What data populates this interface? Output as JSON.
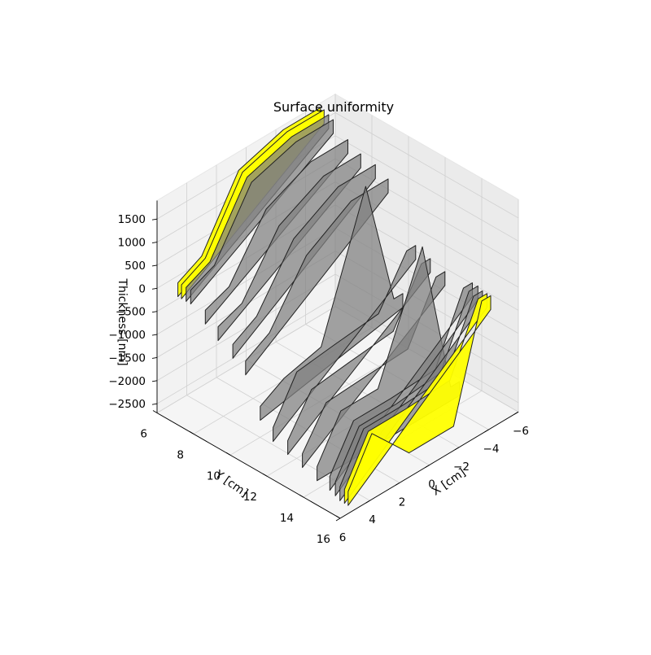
{
  "chart_data": {
    "type": "area",
    "title": "Surface uniformity",
    "xlabel": "X [cm]",
    "ylabel": "Y [cm]",
    "zlabel": "Thickness [nm]",
    "xlim": [
      -6,
      6
    ],
    "ylim": [
      6,
      16
    ],
    "zlim": [
      -2700,
      1900
    ],
    "x_ticks": [
      "−6",
      "−4",
      "−2",
      "0",
      "2",
      "4",
      "6"
    ],
    "x_tick_values": [
      -6,
      -4,
      -2,
      0,
      2,
      4,
      6
    ],
    "y_ticks": [
      "6",
      "8",
      "10",
      "12",
      "14",
      "16"
    ],
    "y_tick_values": [
      6,
      8,
      10,
      12,
      14,
      16
    ],
    "z_ticks": [
      "1500",
      "1000",
      "500",
      "0",
      "−500",
      "−1000",
      "−1500",
      "−2000",
      "−2500"
    ],
    "z_tick_values": [
      1500,
      1000,
      500,
      0,
      -500,
      -1000,
      -1500,
      -2000,
      -2500
    ],
    "grid": true,
    "colors": {
      "highlight": "#ffff00",
      "fill": "#808080",
      "edge": "#222222"
    },
    "x": [
      4.6,
      3.0,
      0.5,
      -2.5,
      -4.4,
      -5.0
    ],
    "series": [
      {
        "y": 6.0,
        "values": [
          -150,
          120,
          1500,
          1800,
          1800,
          1800
        ],
        "highlight": true
      },
      {
        "y": 6.2,
        "values": [
          -150,
          120,
          1500,
          1800,
          1800,
          1800
        ],
        "highlight": true
      },
      {
        "y": 6.45,
        "values": [
          -150,
          100,
          1450,
          1750,
          1750,
          1750
        ],
        "highlight": false
      },
      {
        "y": 6.7,
        "values": [
          -150,
          80,
          1400,
          1700,
          1700,
          1700
        ],
        "highlight": false
      },
      {
        "y": 7.5,
        "values": [
          -400,
          -200,
          1000,
          1450,
          1450,
          1450
        ],
        "highlight": false
      },
      {
        "y": 8.2,
        "values": [
          -600,
          -400,
          800,
          1300,
          1300,
          1300
        ],
        "highlight": false
      },
      {
        "y": 9.0,
        "values": [
          -800,
          -500,
          700,
          1250,
          1250,
          1250
        ],
        "highlight": false
      },
      {
        "y": 9.7,
        "values": [
          -1000,
          -700,
          500,
          1100,
          1100,
          1100
        ],
        "highlight": false
      },
      {
        "y": 10.5,
        "values": [
          -1800,
          -1500,
          -1300,
          1600,
          -1200,
          -1200
        ],
        "highlight": false
      },
      {
        "y": 11.2,
        "values": [
          -2100,
          -1200,
          -1100,
          -1000,
          0,
          0
        ],
        "highlight": false
      },
      {
        "y": 12.0,
        "values": [
          -2200,
          -1400,
          -1300,
          -1200,
          -100,
          -100
        ],
        "highlight": false
      },
      {
        "y": 12.8,
        "values": [
          -2300,
          -1500,
          -1450,
          -1400,
          -200,
          -200
        ],
        "highlight": false
      },
      {
        "y": 13.6,
        "values": [
          -2400,
          -1500,
          -1500,
          1000,
          -2400,
          -2400
        ],
        "highlight": false
      },
      {
        "y": 14.3,
        "values": [
          -2450,
          -1550,
          -1550,
          -1500,
          -100,
          -100
        ],
        "highlight": false
      },
      {
        "y": 14.6,
        "values": [
          -2500,
          -1600,
          -1600,
          -1500,
          -100,
          -100
        ],
        "highlight": false
      },
      {
        "y": 14.85,
        "values": [
          -2550,
          -1600,
          -1600,
          -1550,
          -150,
          -150
        ],
        "highlight": false
      },
      {
        "y": 15.1,
        "values": [
          -2550,
          -1600,
          -1600,
          -1550,
          -150,
          -150
        ],
        "highlight": true
      },
      {
        "y": 15.3,
        "values": [
          -2550,
          -1600,
          -2500,
          -2500,
          -150,
          -150
        ],
        "highlight": true
      }
    ]
  }
}
